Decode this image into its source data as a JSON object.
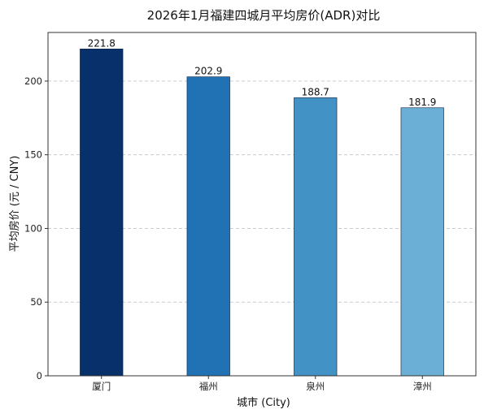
{
  "chart_data": {
    "type": "bar",
    "title": "2026年1月福建四城月平均房价(ADR)对比",
    "xlabel": "城市 (City)",
    "ylabel": "平均房价 (元 / CNY)",
    "categories": [
      "厦门",
      "福州",
      "泉州",
      "漳州"
    ],
    "values": [
      221.8,
      202.9,
      188.7,
      181.9
    ],
    "value_labels": [
      "221.8",
      "202.9",
      "188.7",
      "181.9"
    ],
    "colors": [
      "#08306b",
      "#2171b5",
      "#4292c6",
      "#6baed6"
    ],
    "ylim": [
      0,
      233
    ],
    "yticks": [
      0,
      50,
      100,
      150,
      200
    ],
    "ytick_labels": [
      "0",
      "50",
      "100",
      "150",
      "200"
    ],
    "grid": true,
    "legend": "none"
  }
}
